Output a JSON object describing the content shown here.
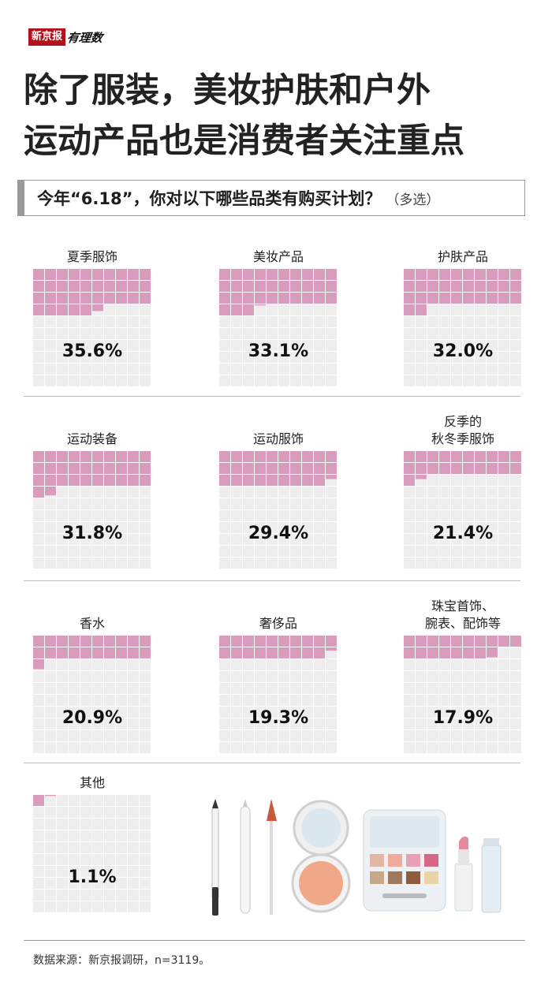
{
  "brand": {
    "logo_text": "新京报",
    "column": "有理数"
  },
  "title": {
    "line1": "除了服装，美妆护肤和户外",
    "line2": "运动产品也是消费者关注重点"
  },
  "question": {
    "text": "今年“6.18”，你对以下哪些品类有购买计划？",
    "note": "（多选）"
  },
  "colors": {
    "filled": "#d99cbd",
    "empty": "#eeeeee",
    "brand_red": "#b3121c"
  },
  "chart_data": {
    "type": "waffle",
    "cells_per_chart": 100,
    "unit": "%",
    "categories": [
      {
        "label": "夏季服饰",
        "value": 35.6,
        "display": "35.6%"
      },
      {
        "label": "美妆产品",
        "value": 33.1,
        "display": "33.1%"
      },
      {
        "label": "护肤产品",
        "value": 32.0,
        "display": "32.0%"
      },
      {
        "label": "运动装备",
        "value": 31.8,
        "display": "31.8%"
      },
      {
        "label": "运动服饰",
        "value": 29.4,
        "display": "29.4%"
      },
      {
        "label": "反季的\n秋冬季服饰",
        "value": 21.4,
        "display": "21.4%"
      },
      {
        "label": "香水",
        "value": 20.9,
        "display": "20.9%"
      },
      {
        "label": "奢侈品",
        "value": 19.3,
        "display": "19.3%"
      },
      {
        "label": "珠宝首饰、\n腕表、配饰等",
        "value": 17.9,
        "display": "17.9%"
      },
      {
        "label": "其他",
        "value": 1.1,
        "display": "1.1%"
      }
    ]
  },
  "illustration": {
    "icon": "makeup-tools-icon"
  },
  "source": "数据来源：新京报调研，n=3119。"
}
